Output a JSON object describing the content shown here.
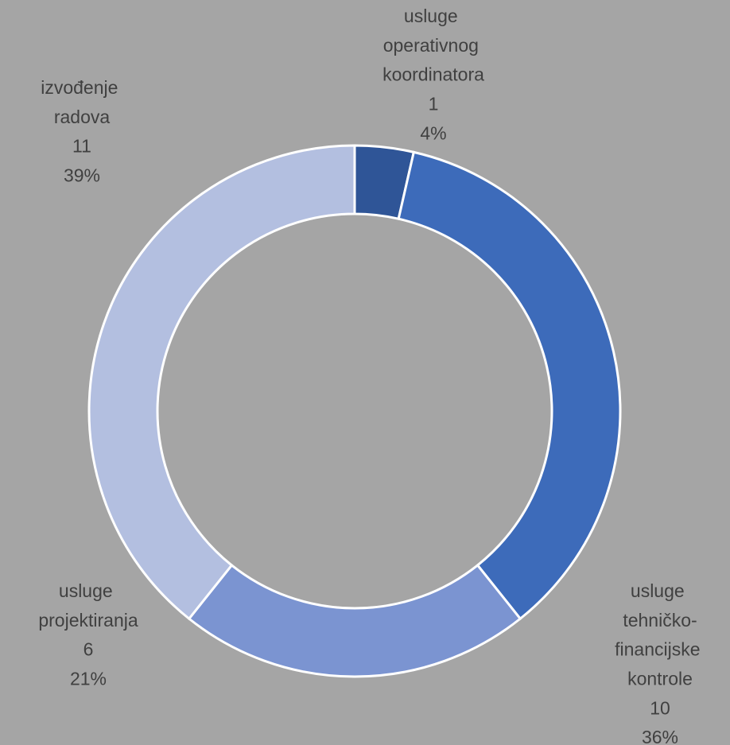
{
  "chart_data": {
    "type": "donut",
    "categories": [
      "usluge operativnog koordinatora",
      "usluge tehničko-financijske kontrole",
      "usluge projektiranja",
      "izvođenje radova"
    ],
    "values": [
      1,
      10,
      6,
      11
    ],
    "percentages": [
      4,
      36,
      21,
      39
    ],
    "percentage_labels": [
      "4%",
      "36%",
      "21%",
      "39%"
    ],
    "colors": [
      "#2f5597",
      "#3d6bba",
      "#7b94d1",
      "#b3bfe0"
    ]
  }
}
